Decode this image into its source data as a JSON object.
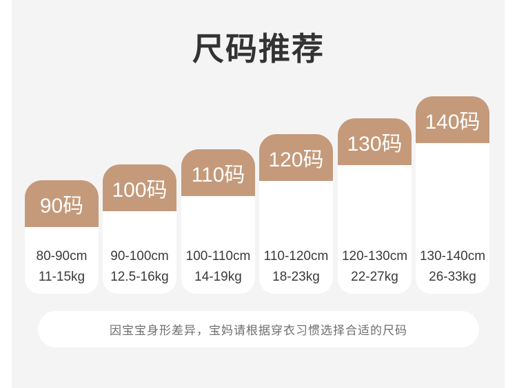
{
  "page_title": "尺码推荐",
  "colors": {
    "accent_tan": "#c49a7b",
    "panel_bg": "#f4f4f5",
    "card_bg": "#ffffff",
    "title_text": "#333333",
    "body_text": "#3a3a3a",
    "note_text": "#6e6e6e",
    "badge_text": "#ffffff"
  },
  "chart_data": {
    "type": "table",
    "title": "尺码推荐",
    "categories": [
      "90码",
      "100码",
      "110码",
      "120码",
      "130码",
      "140码"
    ],
    "rows": [
      {
        "size": "90码",
        "height_cm": "80-90cm",
        "weight_kg": "11-15kg"
      },
      {
        "size": "100码",
        "height_cm": "90-100cm",
        "weight_kg": "12.5-16kg"
      },
      {
        "size": "110码",
        "height_cm": "100-110cm",
        "weight_kg": "14-19kg"
      },
      {
        "size": "120码",
        "height_cm": "110-120cm",
        "weight_kg": "18-23kg"
      },
      {
        "size": "130码",
        "height_cm": "120-130cm",
        "weight_kg": "22-27kg"
      },
      {
        "size": "140码",
        "height_cm": "130-140cm",
        "weight_kg": "26-33kg"
      }
    ],
    "note": "因宝宝身形差异，宝妈请根据穿衣习惯选择合适的尺码",
    "layout_hint": "six columns, ascending staircase left to right, bottoms aligned",
    "legend_position": "none",
    "grid": false
  }
}
